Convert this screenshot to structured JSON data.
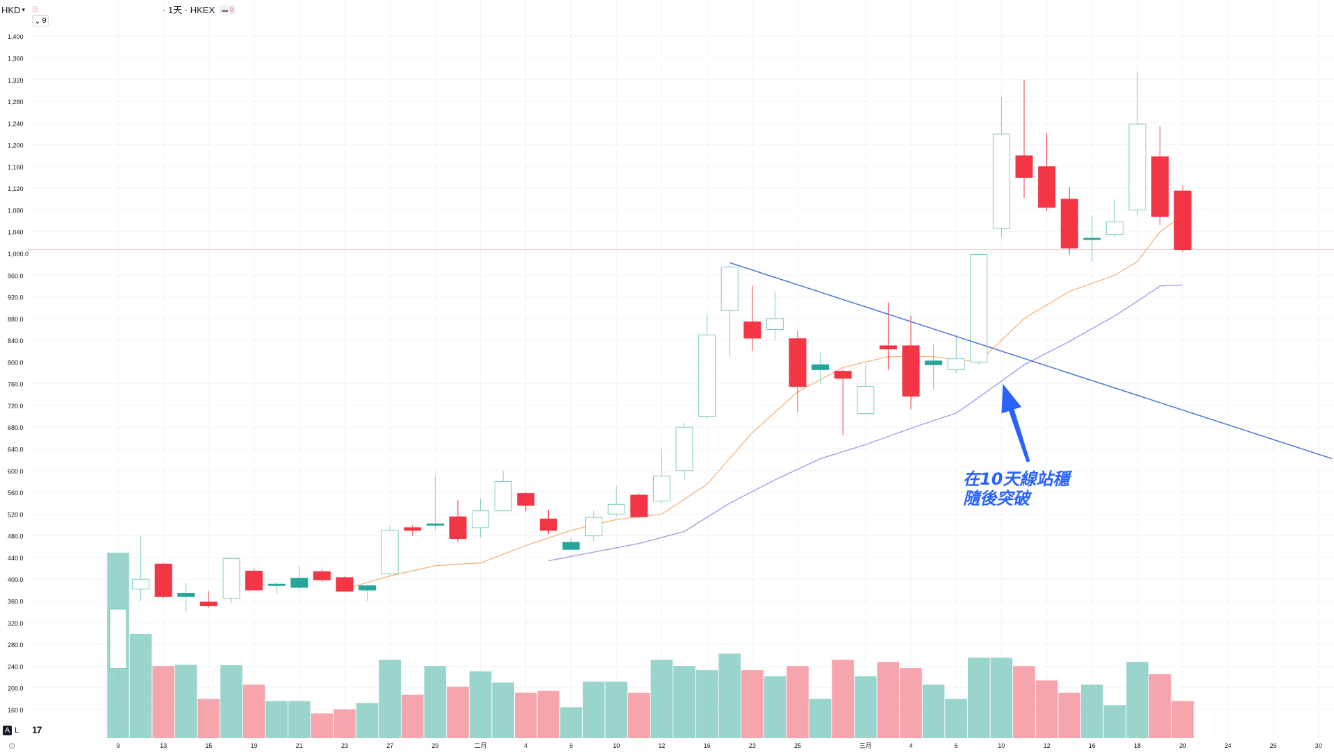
{
  "header": {
    "currency": "HKD",
    "symbol_info": "· 1天 · HKEX",
    "badge_value": "0",
    "collapse_label": "9"
  },
  "corner": {
    "auto_label": "A",
    "log_label": "L",
    "logo": "17"
  },
  "colors": {
    "up": "#26a69a",
    "down": "#f23645",
    "up_volume": "#99d5cd",
    "down_volume": "#f5a5ab",
    "ma5": "#f7b27a",
    "ma10": "#9b98e8",
    "trendline": "#4a72d9",
    "annotation": "#2962ff",
    "grid": "#f0f3fa",
    "price_line": "#f7c6cb"
  },
  "annotation": {
    "line1": "在10天線站穩",
    "line2": "隨後突破",
    "arrow_target": {
      "day": 39,
      "price": 765
    }
  },
  "chart_data": {
    "type": "candlestick",
    "y_axis": {
      "ticks": [
        "1,400",
        "1,360",
        "1,320",
        "1,280",
        "1,240",
        "1,200",
        "1,160",
        "1,120",
        "1,080",
        "1,040",
        "1,000.0",
        "960.0",
        "920.0",
        "880.0",
        "840.0",
        "800.0",
        "760.0",
        "720.0",
        "680.0",
        "640.0",
        "600.0",
        "560.0",
        "520.0",
        "480.0",
        "440.0",
        "400.0",
        "360.0",
        "320.0",
        "280.0",
        "240.0",
        "200.0",
        "160.0"
      ],
      "range": [
        145,
        1415
      ]
    },
    "x_axis": {
      "labels": [
        {
          "text": "9",
          "day": 0
        },
        {
          "text": "13",
          "day": 2
        },
        {
          "text": "15",
          "day": 4
        },
        {
          "text": "19",
          "day": 6
        },
        {
          "text": "21",
          "day": 8
        },
        {
          "text": "23",
          "day": 10
        },
        {
          "text": "27",
          "day": 12
        },
        {
          "text": "29",
          "day": 14
        },
        {
          "text": "二月",
          "day": 16
        },
        {
          "text": "4",
          "day": 18
        },
        {
          "text": "6",
          "day": 20
        },
        {
          "text": "10",
          "day": 22
        },
        {
          "text": "12",
          "day": 24
        },
        {
          "text": "16",
          "day": 26
        },
        {
          "text": "23",
          "day": 28
        },
        {
          "text": "25",
          "day": 30
        },
        {
          "text": "三月",
          "day": 33
        },
        {
          "text": "4",
          "day": 35
        },
        {
          "text": "6",
          "day": 37
        },
        {
          "text": "10",
          "day": 39
        },
        {
          "text": "12",
          "day": 41
        },
        {
          "text": "16",
          "day": 43
        },
        {
          "text": "18",
          "day": 45
        },
        {
          "text": "20",
          "day": 47
        },
        {
          "text": "24",
          "day": 49
        },
        {
          "text": "26",
          "day": 51
        },
        {
          "text": "30",
          "day": 53
        }
      ]
    },
    "current_price": 1007,
    "candles": [
      {
        "o": 236,
        "h": 350,
        "l": 220,
        "c": 345,
        "v": 450
      },
      {
        "o": 382,
        "h": 480,
        "l": 360,
        "c": 400,
        "v": 253
      },
      {
        "o": 428,
        "h": 430,
        "l": 365,
        "c": 368,
        "v": 175
      },
      {
        "o": 368,
        "h": 393,
        "l": 338,
        "c": 374,
        "v": 178
      },
      {
        "o": 358,
        "h": 378,
        "l": 348,
        "c": 351,
        "v": 95
      },
      {
        "o": 365,
        "h": 440,
        "l": 355,
        "c": 438,
        "v": 177
      },
      {
        "o": 415,
        "h": 420,
        "l": 381,
        "c": 380,
        "v": 130
      },
      {
        "o": 389,
        "h": 395,
        "l": 372,
        "c": 391,
        "v": 90
      },
      {
        "o": 385,
        "h": 425,
        "l": 380,
        "c": 402,
        "v": 90
      },
      {
        "o": 414,
        "h": 418,
        "l": 395,
        "c": 399,
        "v": 60
      },
      {
        "o": 403,
        "h": 405,
        "l": 378,
        "c": 378,
        "v": 70
      },
      {
        "o": 380,
        "h": 390,
        "l": 360,
        "c": 388,
        "v": 85
      },
      {
        "o": 410,
        "h": 500,
        "l": 405,
        "c": 490,
        "v": 190
      },
      {
        "o": 495,
        "h": 500,
        "l": 480,
        "c": 490,
        "v": 105
      },
      {
        "o": 500,
        "h": 592,
        "l": 490,
        "c": 502,
        "v": 175
      },
      {
        "o": 515,
        "h": 546,
        "l": 468,
        "c": 475,
        "v": 125
      },
      {
        "o": 495,
        "h": 548,
        "l": 478,
        "c": 526,
        "v": 162
      },
      {
        "o": 526,
        "h": 600,
        "l": 525,
        "c": 580,
        "v": 135
      },
      {
        "o": 558,
        "h": 560,
        "l": 525,
        "c": 536,
        "v": 110
      },
      {
        "o": 511,
        "h": 528,
        "l": 483,
        "c": 490,
        "v": 115
      },
      {
        "o": 455,
        "h": 476,
        "l": 458,
        "c": 468,
        "v": 75
      },
      {
        "o": 480,
        "h": 527,
        "l": 470,
        "c": 514,
        "v": 137
      },
      {
        "o": 520,
        "h": 572,
        "l": 516,
        "c": 538,
        "v": 137
      },
      {
        "o": 555,
        "h": 558,
        "l": 513,
        "c": 515,
        "v": 110
      },
      {
        "o": 544,
        "h": 640,
        "l": 540,
        "c": 590,
        "v": 190
      },
      {
        "o": 600,
        "h": 688,
        "l": 582,
        "c": 680,
        "v": 175
      },
      {
        "o": 700,
        "h": 888,
        "l": 695,
        "c": 850,
        "v": 165
      },
      {
        "o": 895,
        "h": 977,
        "l": 810,
        "c": 975,
        "v": 205
      },
      {
        "o": 874,
        "h": 940,
        "l": 820,
        "c": 844,
        "v": 165
      },
      {
        "o": 860,
        "h": 930,
        "l": 840,
        "c": 880,
        "v": 150
      },
      {
        "o": 843,
        "h": 858,
        "l": 708,
        "c": 755,
        "v": 175
      },
      {
        "o": 786,
        "h": 818,
        "l": 760,
        "c": 795,
        "v": 95
      },
      {
        "o": 783,
        "h": 786,
        "l": 665,
        "c": 770,
        "v": 190
      },
      {
        "o": 705,
        "h": 795,
        "l": 705,
        "c": 755,
        "v": 150
      },
      {
        "o": 830,
        "h": 910,
        "l": 785,
        "c": 824,
        "v": 185
      },
      {
        "o": 830,
        "h": 885,
        "l": 713,
        "c": 737,
        "v": 170
      },
      {
        "o": 795,
        "h": 832,
        "l": 750,
        "c": 802,
        "v": 130
      },
      {
        "o": 786,
        "h": 850,
        "l": 780,
        "c": 806,
        "v": 95
      },
      {
        "o": 800,
        "h": 1000,
        "l": 795,
        "c": 998,
        "v": 195
      },
      {
        "o": 1046,
        "h": 1288,
        "l": 1030,
        "c": 1220,
        "v": 195
      },
      {
        "o": 1180,
        "h": 1320,
        "l": 1102,
        "c": 1140,
        "v": 175
      },
      {
        "o": 1160,
        "h": 1222,
        "l": 1078,
        "c": 1085,
        "v": 140
      },
      {
        "o": 1100,
        "h": 1122,
        "l": 998,
        "c": 1010,
        "v": 110
      },
      {
        "o": 1026,
        "h": 1070,
        "l": 985,
        "c": 1028,
        "v": 130
      },
      {
        "o": 1035,
        "h": 1100,
        "l": 1030,
        "c": 1058,
        "v": 80
      },
      {
        "o": 1080,
        "h": 1335,
        "l": 1070,
        "c": 1238,
        "v": 185
      },
      {
        "o": 1178,
        "h": 1235,
        "l": 1052,
        "c": 1068,
        "v": 155
      },
      {
        "o": 1115,
        "h": 1125,
        "l": 1002,
        "c": 1007,
        "v": 90
      }
    ],
    "ma5": [
      {
        "day": 10,
        "v": 382
      },
      {
        "day": 12,
        "v": 406
      },
      {
        "day": 14,
        "v": 425
      },
      {
        "day": 16,
        "v": 430
      },
      {
        "day": 18,
        "v": 462
      },
      {
        "day": 20,
        "v": 490
      },
      {
        "day": 22,
        "v": 510
      },
      {
        "day": 24,
        "v": 520
      },
      {
        "day": 26,
        "v": 575
      },
      {
        "day": 28,
        "v": 670
      },
      {
        "day": 30,
        "v": 745
      },
      {
        "day": 32,
        "v": 790
      },
      {
        "day": 34,
        "v": 810
      },
      {
        "day": 36,
        "v": 810
      },
      {
        "day": 38,
        "v": 800
      },
      {
        "day": 40,
        "v": 880
      },
      {
        "day": 42,
        "v": 930
      },
      {
        "day": 44,
        "v": 960
      },
      {
        "day": 45,
        "v": 985
      },
      {
        "day": 46,
        "v": 1040
      },
      {
        "day": 47,
        "v": 1070
      }
    ],
    "ma10": [
      {
        "day": 19,
        "v": 434
      },
      {
        "day": 21,
        "v": 450
      },
      {
        "day": 23,
        "v": 466
      },
      {
        "day": 25,
        "v": 488
      },
      {
        "day": 27,
        "v": 540
      },
      {
        "day": 29,
        "v": 583
      },
      {
        "day": 31,
        "v": 622
      },
      {
        "day": 33,
        "v": 648
      },
      {
        "day": 35,
        "v": 678
      },
      {
        "day": 37,
        "v": 706
      },
      {
        "day": 38,
        "v": 735
      },
      {
        "day": 40,
        "v": 795
      },
      {
        "day": 42,
        "v": 838
      },
      {
        "day": 44,
        "v": 885
      },
      {
        "day": 45,
        "v": 912
      },
      {
        "day": 46,
        "v": 940
      },
      {
        "day": 47,
        "v": 942
      }
    ],
    "trendline": {
      "from": {
        "day": 27,
        "price": 983
      },
      "to": {
        "day": 53.6,
        "price": 622
      }
    },
    "volume_scale": {
      "max": 450,
      "max_price_level": 449,
      "base_price_level": 146
    }
  }
}
